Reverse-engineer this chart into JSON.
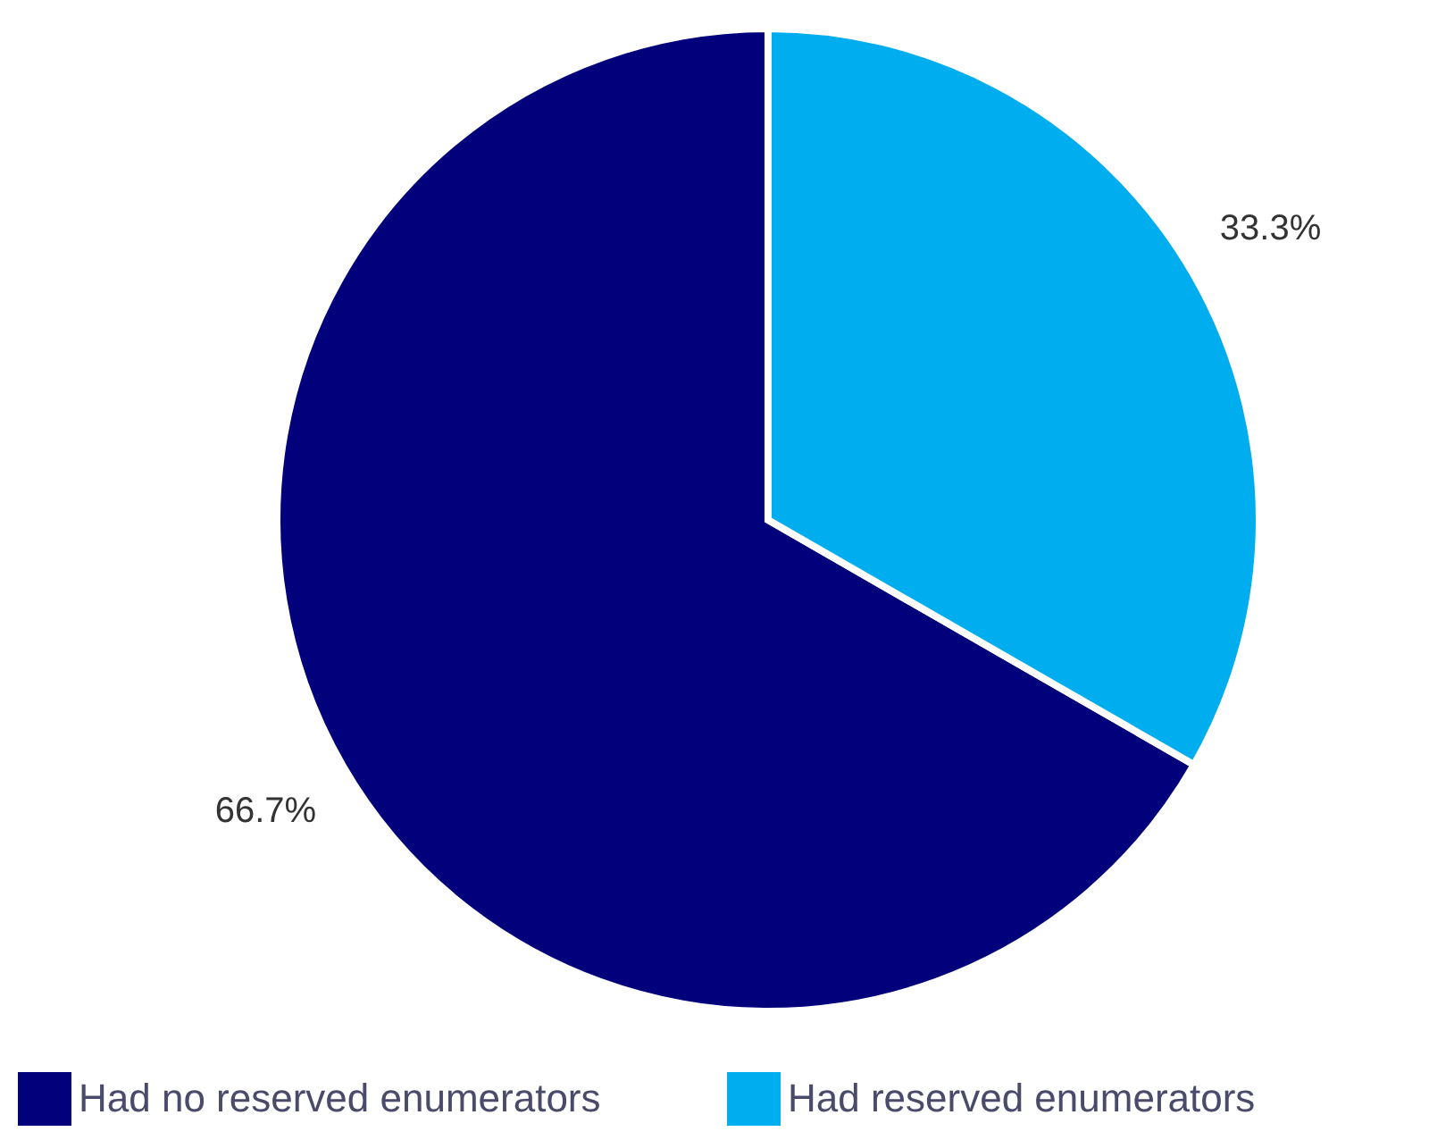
{
  "chart_data": {
    "type": "pie",
    "categories": [
      "Had no reserved enumerators",
      "Had reserved enumerators"
    ],
    "values": [
      66.7,
      33.3
    ],
    "colors": [
      "#03007b",
      "#00aeef"
    ],
    "value_labels": [
      "66.7%",
      "33.3%"
    ],
    "legend": "bottom"
  }
}
